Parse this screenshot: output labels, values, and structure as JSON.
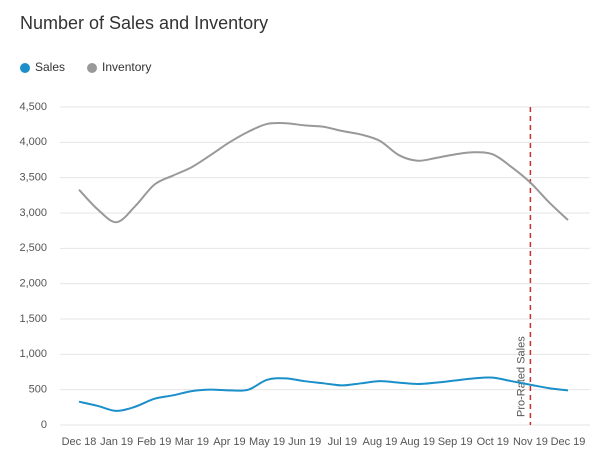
{
  "chart_data": {
    "type": "line",
    "title": "Number of Sales and Inventory",
    "categories": [
      "Dec 18",
      null,
      "Jan 19",
      null,
      "Feb 19",
      null,
      "Mar 19",
      null,
      "Apr 19",
      null,
      "May 19",
      null,
      "Jun 19",
      null,
      "Jul 19",
      null,
      "Aug 19",
      null,
      "Aug 19",
      null,
      "Sep 19",
      null,
      "Oct 19",
      null,
      "Nov 19",
      null,
      "Dec 19"
    ],
    "series": [
      {
        "name": "Sales",
        "color": "#1a8fc9",
        "values": [
          330,
          270,
          200,
          260,
          370,
          420,
          480,
          500,
          490,
          500,
          640,
          660,
          620,
          590,
          560,
          590,
          620,
          600,
          580,
          600,
          630,
          660,
          670,
          620,
          570,
          520,
          490
        ]
      },
      {
        "name": "Inventory",
        "color": "#999999",
        "values": [
          3330,
          3050,
          2870,
          3100,
          3400,
          3530,
          3650,
          3820,
          4000,
          4150,
          4260,
          4270,
          4240,
          4220,
          4160,
          4110,
          4020,
          3820,
          3740,
          3780,
          3830,
          3860,
          3830,
          3650,
          3430,
          3150,
          2900
        ]
      }
    ],
    "ylim": [
      0,
      4500
    ],
    "yticks": [
      0,
      500,
      {
        "value": 1000,
        "label": "1,000"
      },
      {
        "value": 1500,
        "label": "1,500"
      },
      {
        "value": 2000,
        "label": "2,000"
      },
      {
        "value": 2500,
        "label": "2,500"
      },
      {
        "value": 3000,
        "label": "3,000"
      },
      {
        "value": 3500,
        "label": "3,500"
      },
      {
        "value": 4000,
        "label": "4,000"
      },
      {
        "value": 4500,
        "label": "4,500"
      }
    ],
    "grid": true,
    "legend": "top-left",
    "annotation": {
      "text": "Pro-Rated Sales",
      "category": "Nov 19",
      "color": "#c9302c"
    }
  }
}
